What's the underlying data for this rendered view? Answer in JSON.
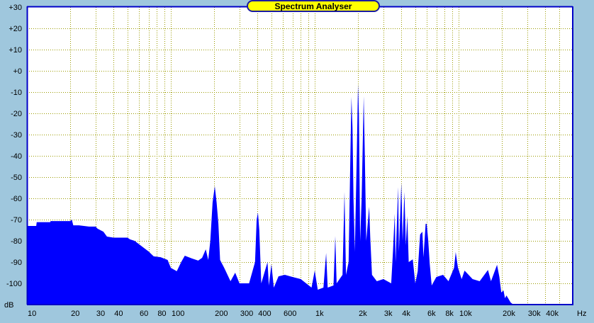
{
  "chart_data": {
    "type": "area",
    "title": "Spectrum Analyser",
    "xlabel": "Hz",
    "ylabel": "dB",
    "x_scale": "log",
    "xlim": [
      10,
      62000
    ],
    "ylim": [
      -110,
      30
    ],
    "grid": true,
    "colors": {
      "fill": "#0000ff",
      "grid": "#9a9a00",
      "background": "#9fc7dd",
      "plot_bg": "#ffffff",
      "border": "#0000c8",
      "title_bg": "#ffff00"
    },
    "y_ticks": [
      {
        "value": 30,
        "label": "+30"
      },
      {
        "value": 20,
        "label": "+20"
      },
      {
        "value": 10,
        "label": "+10"
      },
      {
        "value": 0,
        "label": "+0"
      },
      {
        "value": -10,
        "label": "-10"
      },
      {
        "value": -20,
        "label": "-20"
      },
      {
        "value": -30,
        "label": "-30"
      },
      {
        "value": -40,
        "label": "-40"
      },
      {
        "value": -50,
        "label": "-50"
      },
      {
        "value": -60,
        "label": "-60"
      },
      {
        "value": -70,
        "label": "-70"
      },
      {
        "value": -80,
        "label": "-80"
      },
      {
        "value": -90,
        "label": "-90"
      },
      {
        "value": -100,
        "label": "-100"
      }
    ],
    "x_ticks": [
      {
        "value": 10,
        "label": "10"
      },
      {
        "value": 20,
        "label": "20"
      },
      {
        "value": 30,
        "label": "30"
      },
      {
        "value": 40,
        "label": "40"
      },
      {
        "value": 60,
        "label": "60"
      },
      {
        "value": 80,
        "label": "80"
      },
      {
        "value": 100,
        "label": "100"
      },
      {
        "value": 200,
        "label": "200"
      },
      {
        "value": 300,
        "label": "300"
      },
      {
        "value": 400,
        "label": "400"
      },
      {
        "value": 600,
        "label": "600"
      },
      {
        "value": 1000,
        "label": "1k"
      },
      {
        "value": 2000,
        "label": "2k"
      },
      {
        "value": 3000,
        "label": "3k"
      },
      {
        "value": 4000,
        "label": "4k"
      },
      {
        "value": 6000,
        "label": "6k"
      },
      {
        "value": 8000,
        "label": "8k"
      },
      {
        "value": 10000,
        "label": "10k"
      },
      {
        "value": 20000,
        "label": "20k"
      },
      {
        "value": 30000,
        "label": "30k"
      },
      {
        "value": 40000,
        "label": "40k"
      }
    ],
    "x_gridlines": [
      20,
      30,
      40,
      50,
      60,
      70,
      80,
      90,
      100,
      200,
      300,
      400,
      500,
      600,
      700,
      800,
      900,
      1000,
      2000,
      3000,
      4000,
      5000,
      6000,
      7000,
      8000,
      9000,
      10000,
      20000,
      30000,
      40000,
      50000
    ],
    "points": [
      [
        10,
        -73
      ],
      [
        11.6,
        -73
      ],
      [
        11.7,
        -71.2
      ],
      [
        14.5,
        -71.2
      ],
      [
        14.6,
        -70.7
      ],
      [
        20,
        -70.7
      ],
      [
        20.5,
        -70
      ],
      [
        21,
        -72.7
      ],
      [
        23,
        -72.7
      ],
      [
        27,
        -73.3
      ],
      [
        30,
        -73.3
      ],
      [
        31,
        -74.3
      ],
      [
        34,
        -75.7
      ],
      [
        36,
        -78
      ],
      [
        40,
        -78.5
      ],
      [
        50,
        -78.5
      ],
      [
        52,
        -79.3
      ],
      [
        56,
        -80
      ],
      [
        62,
        -82.3
      ],
      [
        70,
        -85
      ],
      [
        76,
        -87.3
      ],
      [
        85,
        -87.7
      ],
      [
        95,
        -89
      ],
      [
        100,
        -92.7
      ],
      [
        110,
        -94.3
      ],
      [
        118,
        -90
      ],
      [
        125,
        -87
      ],
      [
        140,
        -88.3
      ],
      [
        155,
        -89.3
      ],
      [
        165,
        -88
      ],
      [
        175,
        -84
      ],
      [
        182,
        -89
      ],
      [
        188,
        -80
      ],
      [
        195,
        -62
      ],
      [
        202,
        -54.3
      ],
      [
        208,
        -62
      ],
      [
        214,
        -72
      ],
      [
        220,
        -89
      ],
      [
        235,
        -92.7
      ],
      [
        260,
        -99
      ],
      [
        280,
        -95
      ],
      [
        300,
        -100
      ],
      [
        350,
        -100
      ],
      [
        385,
        -90
      ],
      [
        395,
        -70
      ],
      [
        403,
        -66.7
      ],
      [
        412,
        -75
      ],
      [
        425,
        -100
      ],
      [
        470,
        -90
      ],
      [
        480,
        -101
      ],
      [
        500,
        -91
      ],
      [
        520,
        -102
      ],
      [
        560,
        -96.7
      ],
      [
        620,
        -96
      ],
      [
        700,
        -97
      ],
      [
        800,
        -98
      ],
      [
        950,
        -102
      ],
      [
        1000,
        -94
      ],
      [
        1050,
        -103
      ],
      [
        1150,
        -102
      ],
      [
        1200,
        -85.7
      ],
      [
        1230,
        -102
      ],
      [
        1350,
        -101
      ],
      [
        1390,
        -77.7
      ],
      [
        1420,
        -100
      ],
      [
        1560,
        -96
      ],
      [
        1610,
        -57
      ],
      [
        1650,
        -96
      ],
      [
        1720,
        -90
      ],
      [
        1770,
        -40
      ],
      [
        1800,
        -12.3
      ],
      [
        1830,
        -27
      ],
      [
        1860,
        -60
      ],
      [
        1900,
        -85
      ],
      [
        1960,
        -40
      ],
      [
        2000,
        -6.3
      ],
      [
        2030,
        -21
      ],
      [
        2070,
        -80
      ],
      [
        2120,
        -60
      ],
      [
        2190,
        -12
      ],
      [
        2230,
        -40
      ],
      [
        2280,
        -80
      ],
      [
        2390,
        -64
      ],
      [
        2430,
        -78
      ],
      [
        2500,
        -96
      ],
      [
        2700,
        -99
      ],
      [
        3000,
        -98
      ],
      [
        3400,
        -100
      ],
      [
        3500,
        -85
      ],
      [
        3600,
        -67.3
      ],
      [
        3650,
        -90
      ],
      [
        3800,
        -54.7
      ],
      [
        3850,
        -85
      ],
      [
        4000,
        -52.7
      ],
      [
        4080,
        -80
      ],
      [
        4200,
        -57
      ],
      [
        4300,
        -82
      ],
      [
        4400,
        -68.3
      ],
      [
        4500,
        -90
      ],
      [
        4800,
        -88.7
      ],
      [
        5000,
        -100
      ],
      [
        5200,
        -94.3
      ],
      [
        5400,
        -77
      ],
      [
        5600,
        -75.7
      ],
      [
        5700,
        -87.7
      ],
      [
        5900,
        -72
      ],
      [
        6000,
        -72
      ],
      [
        6150,
        -79.7
      ],
      [
        6300,
        -91
      ],
      [
        6500,
        -101
      ],
      [
        7000,
        -97
      ],
      [
        7800,
        -96
      ],
      [
        8500,
        -99
      ],
      [
        9300,
        -92.7
      ],
      [
        9550,
        -85.3
      ],
      [
        9900,
        -92.7
      ],
      [
        10500,
        -98
      ],
      [
        11000,
        -94
      ],
      [
        12500,
        -98
      ],
      [
        14000,
        -99
      ],
      [
        16000,
        -93.7
      ],
      [
        16800,
        -99
      ],
      [
        18500,
        -91.3
      ],
      [
        19200,
        -97
      ],
      [
        19800,
        -104.3
      ],
      [
        20500,
        -103.3
      ],
      [
        21000,
        -107
      ],
      [
        21500,
        -105.7
      ],
      [
        23000,
        -109
      ],
      [
        24000,
        -110
      ]
    ]
  }
}
